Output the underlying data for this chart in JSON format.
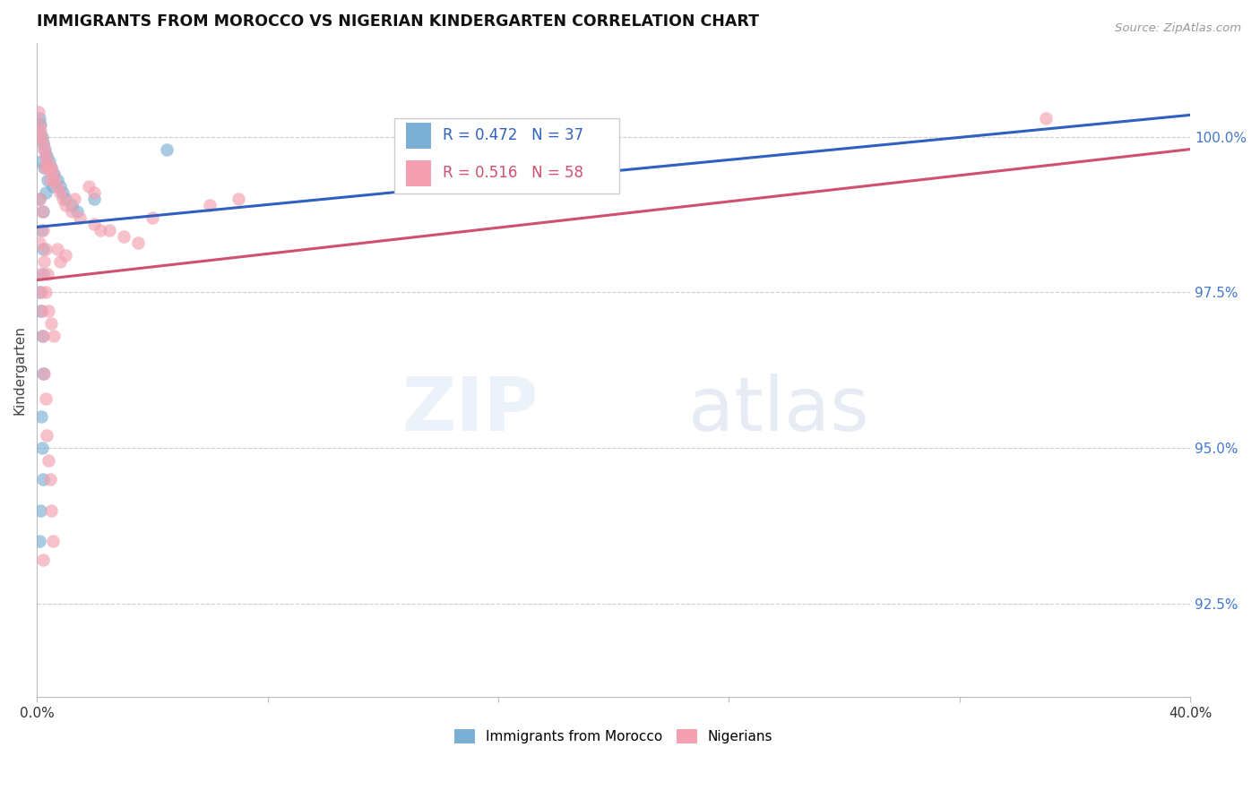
{
  "title": "IMMIGRANTS FROM MOROCCO VS NIGERIAN KINDERGARTEN CORRELATION CHART",
  "source": "Source: ZipAtlas.com",
  "ylabel": "Kindergarten",
  "ylabel_right_ticks": [
    100.0,
    97.5,
    95.0,
    92.5
  ],
  "ylabel_right_labels": [
    "100.0%",
    "97.5%",
    "95.0%",
    "92.5%"
  ],
  "xlim": [
    0.0,
    40.0
  ],
  "ylim": [
    91.0,
    101.5
  ],
  "legend_blue_label": "Immigrants from Morocco",
  "legend_pink_label": "Nigerians",
  "corr_blue_R": "0.472",
  "corr_blue_N": "37",
  "corr_pink_R": "0.516",
  "corr_pink_N": "58",
  "blue_color": "#7bafd4",
  "pink_color": "#f4a0b0",
  "blue_line_color": "#3060c0",
  "pink_line_color": "#d05070",
  "blue_scatter": [
    [
      0.05,
      100.1
    ],
    [
      0.08,
      100.3
    ],
    [
      0.12,
      100.2
    ],
    [
      0.18,
      100.0
    ],
    [
      0.22,
      99.9
    ],
    [
      0.28,
      99.8
    ],
    [
      0.35,
      99.7
    ],
    [
      0.42,
      99.6
    ],
    [
      0.5,
      99.5
    ],
    [
      0.6,
      99.4
    ],
    [
      0.7,
      99.3
    ],
    [
      0.8,
      99.2
    ],
    [
      0.9,
      99.1
    ],
    [
      1.0,
      99.0
    ],
    [
      1.2,
      98.9
    ],
    [
      1.4,
      98.8
    ],
    [
      0.15,
      99.6
    ],
    [
      0.25,
      99.5
    ],
    [
      0.38,
      99.3
    ],
    [
      0.55,
      99.2
    ],
    [
      0.1,
      99.0
    ],
    [
      0.15,
      98.5
    ],
    [
      0.2,
      98.2
    ],
    [
      0.22,
      97.8
    ],
    [
      0.1,
      97.5
    ],
    [
      0.12,
      97.2
    ],
    [
      0.18,
      96.8
    ],
    [
      0.2,
      96.2
    ],
    [
      0.15,
      95.5
    ],
    [
      0.18,
      95.0
    ],
    [
      0.2,
      94.5
    ],
    [
      0.12,
      94.0
    ],
    [
      0.1,
      93.5
    ],
    [
      0.22,
      98.8
    ],
    [
      4.5,
      99.8
    ],
    [
      0.3,
      99.1
    ],
    [
      2.0,
      99.0
    ]
  ],
  "pink_scatter": [
    [
      0.05,
      100.4
    ],
    [
      0.08,
      100.2
    ],
    [
      0.12,
      100.1
    ],
    [
      0.15,
      100.0
    ],
    [
      0.2,
      99.9
    ],
    [
      0.25,
      99.8
    ],
    [
      0.3,
      99.7
    ],
    [
      0.35,
      99.6
    ],
    [
      0.4,
      99.5
    ],
    [
      0.5,
      99.5
    ],
    [
      0.55,
      99.4
    ],
    [
      0.6,
      99.3
    ],
    [
      0.7,
      99.2
    ],
    [
      0.8,
      99.1
    ],
    [
      0.9,
      99.0
    ],
    [
      1.0,
      98.9
    ],
    [
      1.2,
      98.8
    ],
    [
      1.5,
      98.7
    ],
    [
      2.0,
      98.6
    ],
    [
      2.5,
      98.5
    ],
    [
      3.0,
      98.4
    ],
    [
      3.5,
      98.3
    ],
    [
      0.18,
      98.8
    ],
    [
      0.22,
      98.5
    ],
    [
      0.3,
      98.2
    ],
    [
      0.38,
      97.8
    ],
    [
      0.1,
      98.3
    ],
    [
      0.12,
      97.8
    ],
    [
      0.15,
      97.5
    ],
    [
      0.18,
      97.2
    ],
    [
      0.2,
      96.8
    ],
    [
      0.25,
      96.2
    ],
    [
      0.3,
      95.8
    ],
    [
      0.35,
      95.2
    ],
    [
      0.4,
      94.8
    ],
    [
      0.45,
      94.5
    ],
    [
      0.5,
      94.0
    ],
    [
      0.55,
      93.5
    ],
    [
      0.2,
      93.2
    ],
    [
      0.25,
      98.0
    ],
    [
      0.3,
      97.5
    ],
    [
      0.4,
      97.2
    ],
    [
      0.5,
      97.0
    ],
    [
      0.6,
      96.8
    ],
    [
      0.7,
      98.2
    ],
    [
      0.8,
      98.0
    ],
    [
      1.0,
      98.1
    ],
    [
      1.3,
      99.0
    ],
    [
      1.8,
      99.2
    ],
    [
      0.45,
      99.3
    ],
    [
      0.28,
      99.5
    ],
    [
      2.2,
      98.5
    ],
    [
      4.0,
      98.7
    ],
    [
      6.0,
      98.9
    ],
    [
      7.0,
      99.0
    ],
    [
      2.0,
      99.1
    ],
    [
      35.0,
      100.3
    ],
    [
      0.1,
      99.0
    ]
  ],
  "blue_trendline": [
    [
      0.0,
      98.55
    ],
    [
      40.0,
      100.35
    ]
  ],
  "pink_trendline": [
    [
      0.0,
      97.7
    ],
    [
      40.0,
      99.8
    ]
  ]
}
